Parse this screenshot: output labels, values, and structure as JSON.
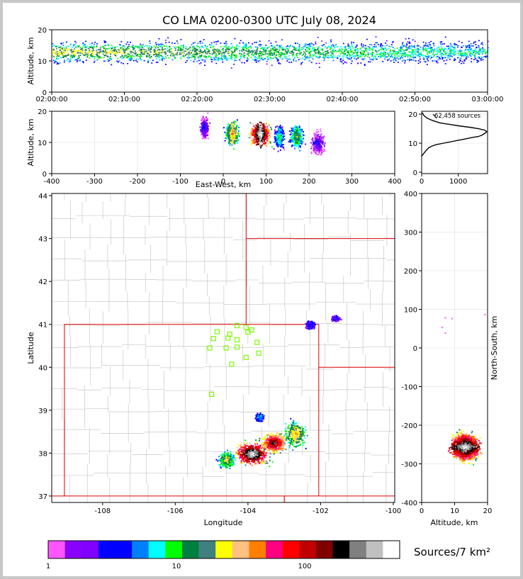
{
  "title": "CO LMA 0200-0300 UTC July 08, 2024",
  "colors": {
    "border": "#c8c8c8",
    "state_line": "#e00000",
    "county_line": "#c8c8c8",
    "station": "#7cfc00",
    "grid": "#e6e6e6"
  },
  "chart_data": [
    {
      "id": "time_height",
      "type": "heatmap",
      "xlabel": "",
      "ylabel": "Altitude, km",
      "x_ticks": [
        "02:00:00",
        "02:10:00",
        "02:20:00",
        "02:30:00",
        "02:40:00",
        "02:50:00",
        "03:00:00"
      ],
      "y_ticks": [
        0,
        10,
        20
      ],
      "ylim": [
        0,
        20
      ],
      "grid": true
    },
    {
      "id": "ew_height",
      "type": "heatmap",
      "xlabel": "East-West, km",
      "ylabel": "Altitude, km",
      "x_ticks": [
        -400,
        -300,
        -200,
        -100,
        0,
        100,
        200,
        300,
        400
      ],
      "y_ticks": [
        0,
        10,
        20
      ],
      "xlim": [
        -400,
        400
      ],
      "ylim": [
        0,
        20
      ],
      "grid": true
    },
    {
      "id": "alt_hist",
      "type": "line",
      "annotation": "62,458 sources",
      "x_ticks": [
        0,
        1000
      ],
      "y_ticks": [
        0,
        10,
        20
      ],
      "xlim": [
        0,
        1800
      ],
      "ylim": [
        -0.5,
        21
      ],
      "series": [
        {
          "x": [
            0,
            60,
            120,
            200,
            280,
            400,
            600,
            800,
            1000,
            1200,
            1400,
            1550,
            1650,
            1700,
            1750,
            1780,
            1720,
            1550,
            1300,
            1000,
            750,
            500,
            300,
            150,
            60,
            20
          ],
          "y": [
            5.5,
            6.5,
            7.5,
            8.5,
            9,
            9.5,
            10,
            10.5,
            11,
            11.5,
            12,
            12.3,
            12.8,
            13.2,
            13.6,
            14,
            14.5,
            15,
            15.5,
            16,
            16.5,
            17,
            17.8,
            18.6,
            19.5,
            20.5
          ]
        }
      ]
    },
    {
      "id": "plan_view",
      "type": "heatmap",
      "xlabel": "Longitude",
      "ylabel": "Latitude",
      "x_ticks": [
        -108,
        -106,
        -104,
        -102,
        -100
      ],
      "y_ticks": [
        37,
        38,
        39,
        40,
        41,
        42,
        43,
        44
      ],
      "xlim": [
        -109.4,
        -99.96
      ],
      "ylim": [
        36.85,
        44.05
      ],
      "stations": [
        [
          -104.3,
          40.97
        ],
        [
          -104.85,
          40.83
        ],
        [
          -104.5,
          40.77
        ],
        [
          -104.0,
          40.82
        ],
        [
          -103.9,
          40.87
        ],
        [
          -104.05,
          40.93
        ],
        [
          -104.95,
          40.67
        ],
        [
          -104.55,
          40.68
        ],
        [
          -104.3,
          40.64
        ],
        [
          -103.75,
          40.58
        ],
        [
          -105.05,
          40.45
        ],
        [
          -104.6,
          40.45
        ],
        [
          -104.3,
          40.47
        ],
        [
          -103.7,
          40.33
        ],
        [
          -104.05,
          40.23
        ],
        [
          -104.45,
          40.07
        ],
        [
          -105.0,
          39.37
        ]
      ]
    },
    {
      "id": "ns_height",
      "type": "heatmap",
      "xlabel": "Altitude, km",
      "ylabel": "North-South, km",
      "x_ticks": [
        0,
        10,
        20
      ],
      "y_ticks": [
        400,
        300,
        200,
        100,
        0,
        -100,
        -200,
        -300,
        -400
      ],
      "xlim": [
        0,
        20
      ],
      "ylim": [
        -400,
        400
      ],
      "grid": true
    },
    {
      "id": "colorbar",
      "type": "bar",
      "label": "Sources/7 km²",
      "tick_labels": [
        "1",
        "10",
        "100"
      ],
      "colors": [
        "#ff55ff",
        "#8a00ff",
        "#8000ff",
        "#0000ff",
        "#0000ff",
        "#0080ff",
        "#00ffff",
        "#00ff00",
        "#008040",
        "#408080",
        "#ffff00",
        "#ffc080",
        "#ff8000",
        "#ff0080",
        "#ff0000",
        "#c00000",
        "#800000",
        "#000000",
        "#808080",
        "#c0c0c0",
        "#ffffff"
      ]
    }
  ]
}
